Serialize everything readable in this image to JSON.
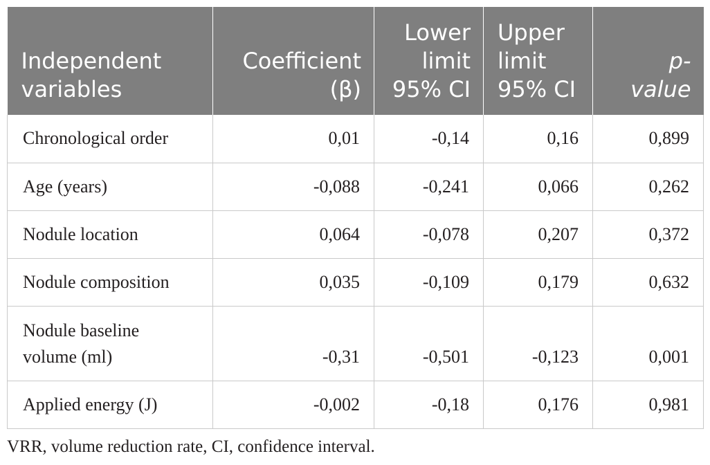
{
  "table": {
    "headers": [
      {
        "line1": "Independent",
        "line2": "variables"
      },
      {
        "line1": "Coefficient",
        "line2": "(β)"
      },
      {
        "line1": "Lower",
        "line2": "limit",
        "line3": "95% CI"
      },
      {
        "line1": "Upper",
        "line2": "limit",
        "line3": "95% CI"
      },
      {
        "line1": "p-",
        "line2": "value"
      }
    ],
    "rows": [
      {
        "variable": "Chronological order",
        "coefficient": "0,01",
        "lower": "-0,14",
        "upper": "0,16",
        "p": "0,899"
      },
      {
        "variable": "Age (years)",
        "coefficient": "-0,088",
        "lower": "-0,241",
        "upper": "0,066",
        "p": "0,262"
      },
      {
        "variable": "Nodule location",
        "coefficient": "0,064",
        "lower": "-0,078",
        "upper": "0,207",
        "p": "0,372"
      },
      {
        "variable": "Nodule composition",
        "coefficient": "0,035",
        "lower": "-0,109",
        "upper": "0,179",
        "p": "0,632"
      },
      {
        "variable_line1": "Nodule baseline",
        "variable_line2": "volume (ml)",
        "coefficient": "-0,31",
        "lower": "-0,501",
        "upper": "-0,123",
        "p": "0,001"
      },
      {
        "variable": "Applied energy (J)",
        "coefficient": "-0,002",
        "lower": "-0,18",
        "upper": "0,176",
        "p": "0,981"
      }
    ]
  },
  "footnote": "VRR, volume reduction rate, CI, confidence interval."
}
